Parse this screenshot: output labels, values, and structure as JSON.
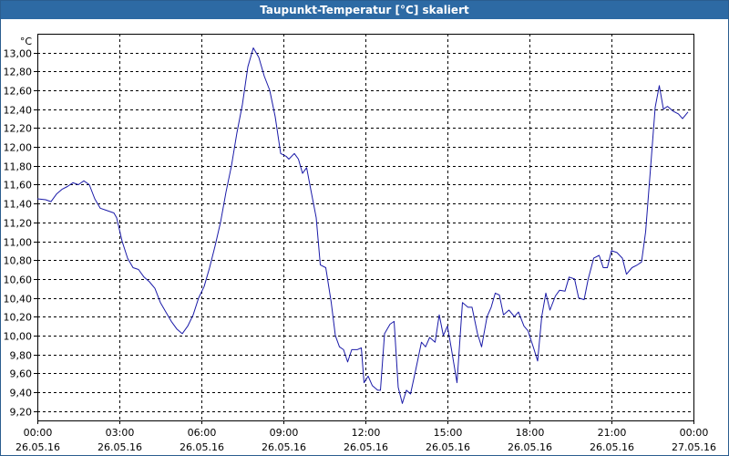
{
  "chart_data": {
    "type": "line",
    "title": "Taupunkt-Temperatur [°C] skaliert",
    "unit": "°C",
    "ylim": [
      9.1,
      13.2
    ],
    "yticks": [
      9.2,
      9.4,
      9.6,
      9.8,
      10.0,
      10.2,
      10.4,
      10.6,
      10.8,
      11.0,
      11.2,
      11.4,
      11.6,
      11.8,
      12.0,
      12.2,
      12.4,
      12.6,
      12.8,
      13.0
    ],
    "ytick_labels": [
      "9,20",
      "9,40",
      "9,60",
      "9,80",
      "10,00",
      "10,20",
      "10,40",
      "10,60",
      "10,80",
      "11,00",
      "11,20",
      "11,40",
      "11,60",
      "11,80",
      "12,00",
      "12,20",
      "12,40",
      "12,60",
      "12,80",
      "13,00"
    ],
    "xlim_hours": [
      0,
      24
    ],
    "xticks": [
      {
        "hour": 0,
        "time": "00:00",
        "date": "26.05.16"
      },
      {
        "hour": 3,
        "time": "03:00",
        "date": "26.05.16"
      },
      {
        "hour": 6,
        "time": "06:00",
        "date": "26.05.16"
      },
      {
        "hour": 9,
        "time": "09:00",
        "date": "26.05.16"
      },
      {
        "hour": 12,
        "time": "12:00",
        "date": "26.05.16"
      },
      {
        "hour": 15,
        "time": "15:00",
        "date": "26.05.16"
      },
      {
        "hour": 18,
        "time": "18:00",
        "date": "26.05.16"
      },
      {
        "hour": 21,
        "time": "21:00",
        "date": "26.05.16"
      },
      {
        "hour": 24,
        "time": "00:00",
        "date": "27.05.16"
      }
    ],
    "grid": true,
    "line_color": "#1a1aa8",
    "series": [
      {
        "points": [
          [
            0.0,
            11.45
          ],
          [
            0.3,
            11.44
          ],
          [
            0.5,
            11.42
          ],
          [
            0.7,
            11.5
          ],
          [
            0.9,
            11.55
          ],
          [
            1.1,
            11.58
          ],
          [
            1.3,
            11.62
          ],
          [
            1.5,
            11.6
          ],
          [
            1.7,
            11.64
          ],
          [
            1.9,
            11.6
          ],
          [
            2.1,
            11.45
          ],
          [
            2.3,
            11.35
          ],
          [
            2.5,
            11.33
          ],
          [
            2.8,
            11.3
          ],
          [
            2.9,
            11.25
          ],
          [
            3.1,
            11.0
          ],
          [
            3.3,
            10.82
          ],
          [
            3.5,
            10.72
          ],
          [
            3.7,
            10.7
          ],
          [
            3.9,
            10.62
          ],
          [
            4.1,
            10.57
          ],
          [
            4.3,
            10.5
          ],
          [
            4.5,
            10.35
          ],
          [
            4.7,
            10.25
          ],
          [
            4.9,
            10.15
          ],
          [
            5.1,
            10.07
          ],
          [
            5.3,
            10.02
          ],
          [
            5.5,
            10.1
          ],
          [
            5.7,
            10.22
          ],
          [
            5.9,
            10.4
          ],
          [
            6.1,
            10.52
          ],
          [
            6.3,
            10.72
          ],
          [
            6.5,
            10.95
          ],
          [
            6.7,
            11.2
          ],
          [
            6.9,
            11.52
          ],
          [
            7.1,
            11.8
          ],
          [
            7.3,
            12.15
          ],
          [
            7.5,
            12.45
          ],
          [
            7.7,
            12.85
          ],
          [
            7.9,
            13.05
          ],
          [
            8.1,
            12.95
          ],
          [
            8.3,
            12.75
          ],
          [
            8.5,
            12.6
          ],
          [
            8.7,
            12.32
          ],
          [
            8.9,
            11.93
          ],
          [
            9.1,
            11.9
          ],
          [
            9.2,
            11.87
          ],
          [
            9.4,
            11.93
          ],
          [
            9.55,
            11.87
          ],
          [
            9.7,
            11.72
          ],
          [
            9.85,
            11.78
          ],
          [
            10.0,
            11.55
          ],
          [
            10.2,
            11.25
          ],
          [
            10.35,
            10.75
          ],
          [
            10.55,
            10.72
          ],
          [
            10.75,
            10.35
          ],
          [
            10.9,
            10.0
          ],
          [
            11.05,
            9.88
          ],
          [
            11.2,
            9.85
          ],
          [
            11.35,
            9.72
          ],
          [
            11.5,
            9.85
          ],
          [
            11.7,
            9.85
          ],
          [
            11.85,
            9.87
          ],
          [
            11.95,
            9.5
          ],
          [
            12.1,
            9.57
          ],
          [
            12.25,
            9.47
          ],
          [
            12.45,
            9.42
          ],
          [
            12.55,
            9.42
          ],
          [
            12.7,
            10.02
          ],
          [
            12.9,
            10.12
          ],
          [
            13.05,
            10.15
          ],
          [
            13.2,
            9.45
          ],
          [
            13.35,
            9.28
          ],
          [
            13.5,
            9.42
          ],
          [
            13.65,
            9.38
          ],
          [
            13.85,
            9.65
          ],
          [
            14.05,
            9.93
          ],
          [
            14.2,
            9.88
          ],
          [
            14.35,
            9.98
          ],
          [
            14.55,
            9.93
          ],
          [
            14.7,
            10.22
          ],
          [
            14.85,
            10.0
          ],
          [
            15.0,
            10.1
          ],
          [
            15.15,
            9.85
          ],
          [
            15.35,
            9.5
          ],
          [
            15.55,
            10.35
          ],
          [
            15.75,
            10.3
          ],
          [
            15.9,
            10.3
          ],
          [
            16.1,
            10.02
          ],
          [
            16.25,
            9.88
          ],
          [
            16.45,
            10.2
          ],
          [
            16.6,
            10.3
          ],
          [
            16.75,
            10.45
          ],
          [
            16.9,
            10.43
          ],
          [
            17.05,
            10.22
          ],
          [
            17.25,
            10.27
          ],
          [
            17.45,
            10.2
          ],
          [
            17.6,
            10.25
          ],
          [
            17.8,
            10.1
          ],
          [
            17.95,
            10.05
          ],
          [
            18.15,
            9.87
          ],
          [
            18.3,
            9.73
          ],
          [
            18.45,
            10.2
          ],
          [
            18.6,
            10.45
          ],
          [
            18.75,
            10.27
          ],
          [
            18.95,
            10.42
          ],
          [
            19.1,
            10.48
          ],
          [
            19.3,
            10.47
          ],
          [
            19.45,
            10.62
          ],
          [
            19.65,
            10.6
          ],
          [
            19.8,
            10.4
          ],
          [
            20.0,
            10.38
          ],
          [
            20.15,
            10.6
          ],
          [
            20.35,
            10.82
          ],
          [
            20.55,
            10.85
          ],
          [
            20.7,
            10.72
          ],
          [
            20.85,
            10.72
          ],
          [
            21.0,
            10.9
          ],
          [
            21.2,
            10.88
          ],
          [
            21.4,
            10.82
          ],
          [
            21.55,
            10.65
          ],
          [
            21.75,
            10.72
          ],
          [
            21.95,
            10.75
          ],
          [
            22.1,
            10.78
          ],
          [
            22.25,
            11.1
          ],
          [
            22.45,
            11.85
          ],
          [
            22.6,
            12.42
          ],
          [
            22.75,
            12.65
          ],
          [
            22.9,
            12.4
          ],
          [
            23.05,
            12.43
          ],
          [
            23.25,
            12.38
          ],
          [
            23.45,
            12.35
          ],
          [
            23.6,
            12.3
          ],
          [
            23.8,
            12.37
          ]
        ]
      }
    ]
  }
}
